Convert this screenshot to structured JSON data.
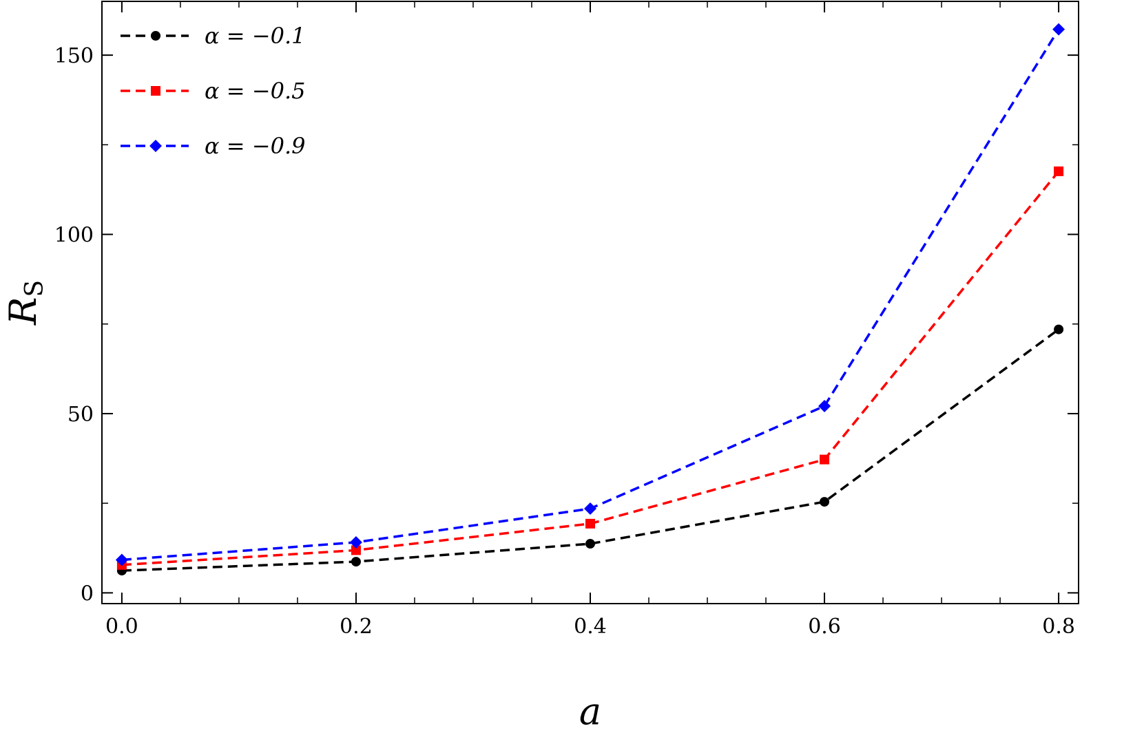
{
  "chart_data": {
    "type": "line",
    "xlabel": "a",
    "ylabel": "R",
    "ylabel_subscript": "S",
    "xlim": [
      -0.017,
      0.817
    ],
    "ylim": [
      -3,
      165
    ],
    "xticks": [
      0.0,
      0.2,
      0.4,
      0.6,
      0.8
    ],
    "xtick_labels": [
      "0.0",
      "0.2",
      "0.4",
      "0.6",
      "0.8"
    ],
    "xminor_step": 0.05,
    "yticks": [
      0,
      50,
      100,
      150
    ],
    "ytick_labels": [
      "0",
      "50",
      "100",
      "150"
    ],
    "yminor_step": 25,
    "grid": false,
    "legend_position": "top-left",
    "x": [
      0.0,
      0.2,
      0.4,
      0.6,
      0.8
    ],
    "series": [
      {
        "name": "α = −0.1",
        "color": "#000000",
        "marker": "circle",
        "values": [
          6.2,
          8.7,
          13.7,
          25.4,
          73.5
        ]
      },
      {
        "name": "α = −0.5",
        "color": "#ff0000",
        "marker": "square",
        "values": [
          7.8,
          11.9,
          19.3,
          37.2,
          117.6
        ]
      },
      {
        "name": "α = −0.9",
        "color": "#0000ff",
        "marker": "diamond",
        "values": [
          9.2,
          14.1,
          23.5,
          52.1,
          157.2
        ]
      }
    ]
  }
}
